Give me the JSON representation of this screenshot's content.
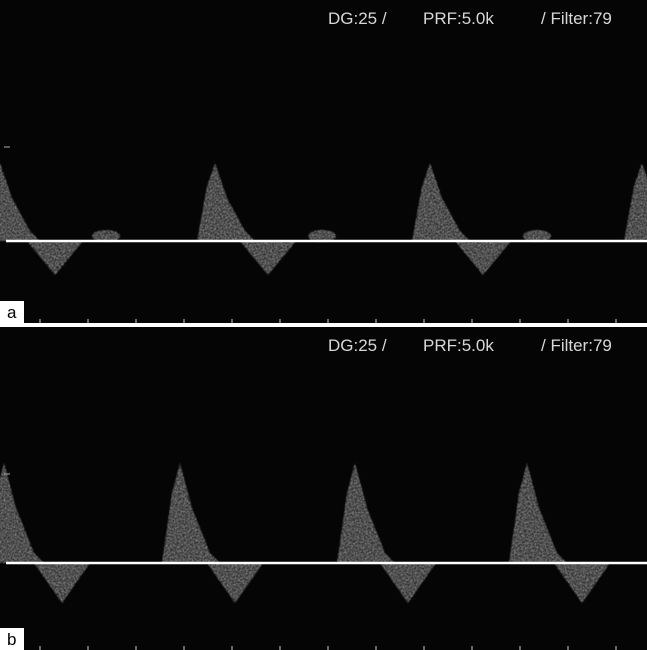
{
  "panels": [
    {
      "label": "a",
      "header": [
        "DG:25 /",
        "PRF:5.0k",
        "/ Filter:79"
      ]
    },
    {
      "label": "b",
      "header": [
        "DG:25 /",
        "PRF:5.0k",
        "/ Filter:79"
      ]
    }
  ]
}
